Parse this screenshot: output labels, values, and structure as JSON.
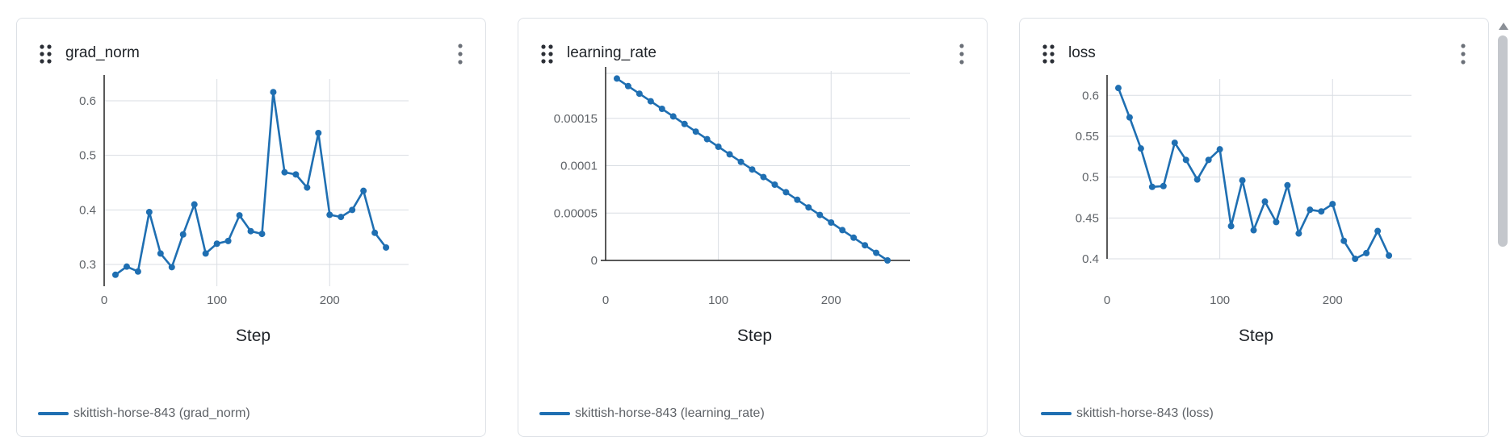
{
  "panels": [
    {
      "title": "grad_norm",
      "legend": "skittish-horse-843 (grad_norm)",
      "xlabel": "Step"
    },
    {
      "title": "learning_rate",
      "legend": "skittish-horse-843 (learning_rate)",
      "xlabel": "Step"
    },
    {
      "title": "loss",
      "legend": "skittish-horse-843 (loss)",
      "xlabel": "Step"
    }
  ],
  "colors": {
    "series": "#1f6fb2",
    "grid": "#d9dde3",
    "axis": "#222222"
  },
  "icons": {
    "drag": "drag-handle-icon",
    "menu": "more-vertical-icon",
    "scroll": "scroll-up-icon"
  },
  "chart_data": [
    {
      "type": "line",
      "title": "grad_norm",
      "xlabel": "Step",
      "ylabel": "",
      "xlim": [
        0,
        270
      ],
      "ylim": [
        0.26,
        0.64
      ],
      "xticks": [
        0,
        100,
        200
      ],
      "xtick_labels": [
        "0",
        "100",
        "200"
      ],
      "yticks": [
        0.3,
        0.4,
        0.5,
        0.6
      ],
      "ytick_labels": [
        "0.3",
        "0.4",
        "0.5",
        "0.6"
      ],
      "grid": true,
      "legend_position": "bottom-left",
      "series": [
        {
          "name": "skittish-horse-843 (grad_norm)",
          "x": [
            10,
            20,
            30,
            40,
            50,
            60,
            70,
            80,
            90,
            100,
            110,
            120,
            130,
            140,
            150,
            160,
            170,
            180,
            190,
            200,
            210,
            220,
            230,
            240,
            250
          ],
          "y": [
            0.281,
            0.296,
            0.287,
            0.396,
            0.32,
            0.295,
            0.355,
            0.41,
            0.32,
            0.338,
            0.343,
            0.39,
            0.361,
            0.356,
            0.616,
            0.469,
            0.465,
            0.441,
            0.541,
            0.391,
            0.387,
            0.4,
            0.435,
            0.358,
            0.331
          ]
        }
      ]
    },
    {
      "type": "line",
      "title": "learning_rate",
      "xlabel": "Step",
      "ylabel": "",
      "xlim": [
        0,
        270
      ],
      "ylim": [
        0,
        0.0002
      ],
      "xticks": [
        0,
        100,
        200
      ],
      "xtick_labels": [
        "0",
        "100",
        "200"
      ],
      "yticks": [
        0,
        5e-05,
        0.0001,
        0.00015
      ],
      "ytick_labels": [
        "0",
        "0.00005",
        "0.0001",
        "0.00015"
      ],
      "grid": true,
      "legend_position": "bottom-left",
      "series": [
        {
          "name": "skittish-horse-843 (learning_rate)",
          "x": [
            10,
            20,
            30,
            40,
            50,
            60,
            70,
            80,
            90,
            100,
            110,
            120,
            130,
            140,
            150,
            160,
            170,
            180,
            190,
            200,
            210,
            220,
            230,
            240,
            250
          ],
          "y": [
            0.000192,
            0.000184,
            0.000176,
            0.000168,
            0.00016,
            0.000152,
            0.000144,
            0.000136,
            0.000128,
            0.00012,
            0.000112,
            0.000104,
            9.6e-05,
            8.8e-05,
            8e-05,
            7.2e-05,
            6.4e-05,
            5.6e-05,
            4.8e-05,
            4e-05,
            3.2e-05,
            2.4e-05,
            1.6e-05,
            8e-06,
            0.0
          ]
        }
      ]
    },
    {
      "type": "line",
      "title": "loss",
      "xlabel": "Step",
      "ylabel": "",
      "xlim": [
        0,
        270
      ],
      "ylim": [
        0.4,
        0.62
      ],
      "xticks": [
        0,
        100,
        200
      ],
      "xtick_labels": [
        "0",
        "100",
        "200"
      ],
      "yticks": [
        0.4,
        0.45,
        0.5,
        0.55,
        0.6
      ],
      "ytick_labels": [
        "0.4",
        "0.45",
        "0.5",
        "0.55",
        "0.6"
      ],
      "grid": true,
      "legend_position": "bottom-left",
      "series": [
        {
          "name": "skittish-horse-843 (loss)",
          "x": [
            10,
            20,
            30,
            40,
            50,
            60,
            70,
            80,
            90,
            100,
            110,
            120,
            130,
            140,
            150,
            160,
            170,
            180,
            190,
            200,
            210,
            220,
            230,
            240,
            250
          ],
          "y": [
            0.609,
            0.573,
            0.535,
            0.488,
            0.489,
            0.542,
            0.521,
            0.497,
            0.521,
            0.534,
            0.44,
            0.496,
            0.435,
            0.47,
            0.445,
            0.49,
            0.431,
            0.46,
            0.458,
            0.467,
            0.422,
            0.4,
            0.407,
            0.434,
            0.404
          ]
        }
      ]
    }
  ]
}
